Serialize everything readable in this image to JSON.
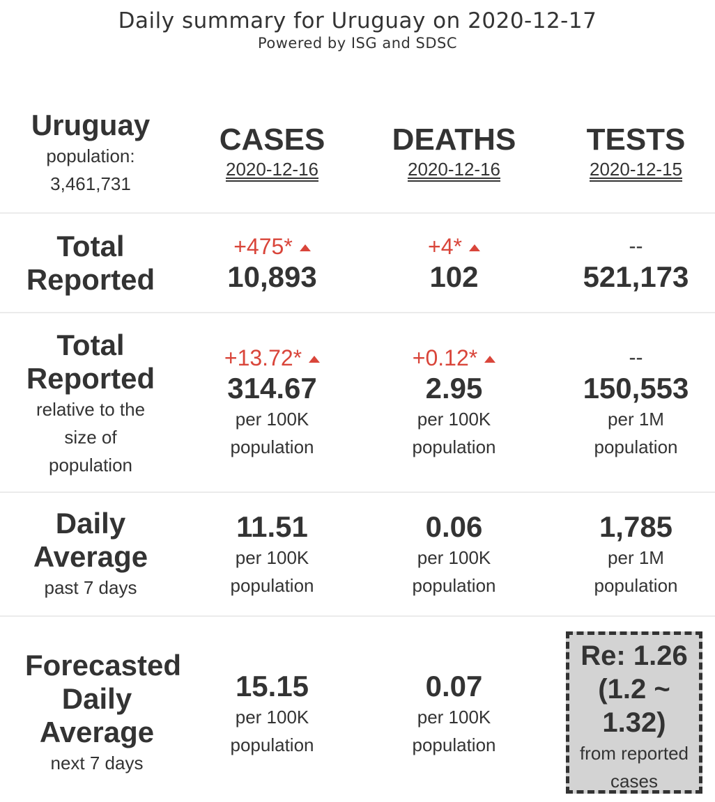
{
  "header": {
    "title": "Daily summary for Uruguay on 2020-12-17",
    "subtitle": "Powered by ISG and SDSC"
  },
  "country": {
    "name": "Uruguay",
    "population_label": "population:",
    "population": "3,461,731"
  },
  "columns": [
    {
      "label": "CASES",
      "date": "2020-12-16"
    },
    {
      "label": "DEATHS",
      "date": "2020-12-16"
    },
    {
      "label": "TESTS",
      "date": "2020-12-15"
    }
  ],
  "rows": {
    "total_reported": {
      "title_line1": "Total",
      "title_line2": "Reported",
      "cases": {
        "delta": "+475*",
        "value": "10,893"
      },
      "deaths": {
        "delta": "+4*",
        "value": "102"
      },
      "tests": {
        "delta": "--",
        "value": "521,173"
      }
    },
    "relative": {
      "title_line1": "Total",
      "title_line2": "Reported",
      "sub_line1": "relative to the",
      "sub_line2": "size of",
      "sub_line3": "population",
      "cases": {
        "delta": "+13.72*",
        "value": "314.67",
        "unit1": "per 100K",
        "unit2": "population"
      },
      "deaths": {
        "delta": "+0.12*",
        "value": "2.95",
        "unit1": "per 100K",
        "unit2": "population"
      },
      "tests": {
        "delta": "--",
        "value": "150,553",
        "unit1": "per 1M",
        "unit2": "population"
      }
    },
    "daily_average": {
      "title_line1": "Daily",
      "title_line2": "Average",
      "sub": "past 7 days",
      "cases": {
        "value": "11.51",
        "unit1": "per 100K",
        "unit2": "population"
      },
      "deaths": {
        "value": "0.06",
        "unit1": "per 100K",
        "unit2": "population"
      },
      "tests": {
        "value": "1,785",
        "unit1": "per 1M",
        "unit2": "population"
      }
    },
    "forecast": {
      "title_line1": "Forecasted",
      "title_line2": "Daily",
      "title_line3": "Average",
      "sub": "next 7 days",
      "cases": {
        "value": "15.15",
        "unit1": "per 100K",
        "unit2": "population"
      },
      "deaths": {
        "value": "0.07",
        "unit1": "per 100K",
        "unit2": "population"
      },
      "re": {
        "line1": "Re: 1.26",
        "line2": "(1.2 ~",
        "line3": "1.32)",
        "sub1": "from reported",
        "sub2": "cases"
      }
    }
  },
  "colors": {
    "increase": "#d9453a",
    "text": "#333333",
    "re_box_bg": "#d3d3d3",
    "separator": "#ebebeb"
  }
}
